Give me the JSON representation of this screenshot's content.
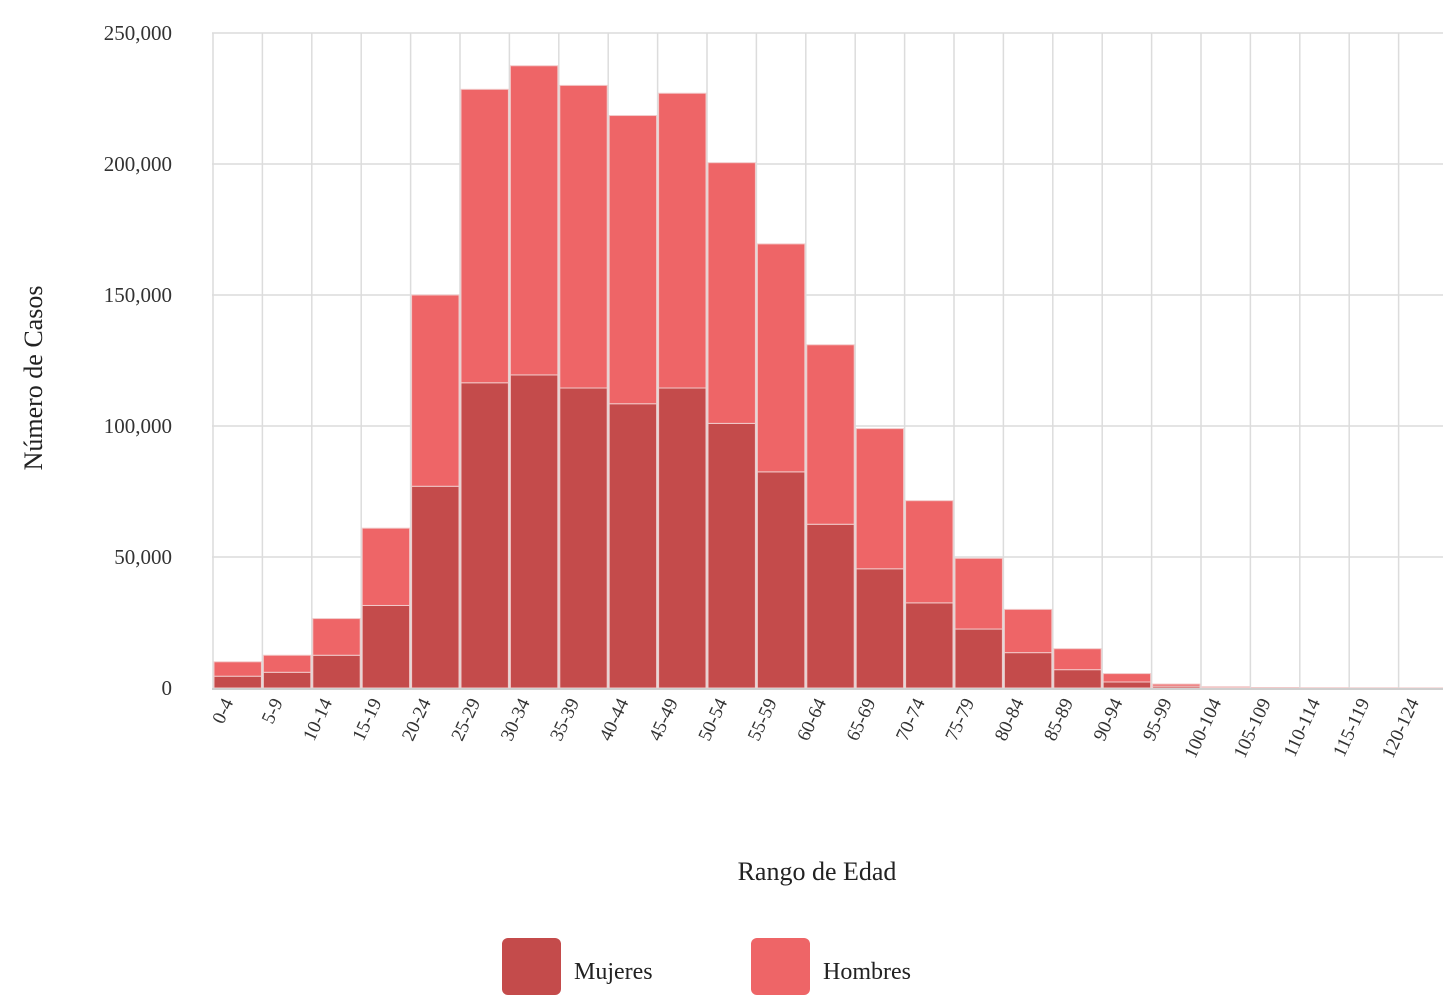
{
  "chart_data": {
    "type": "bar",
    "stacked": true,
    "title": "",
    "xlabel": "Rango de Edad",
    "ylabel": "Número de Casos",
    "ylim": [
      0,
      250000
    ],
    "yticks": [
      0,
      50000,
      100000,
      150000,
      200000,
      250000
    ],
    "ytick_labels": [
      "0",
      "50,000",
      "100,000",
      "150,000",
      "200,000",
      "250,000"
    ],
    "grid": true,
    "legend_position": "bottom-center",
    "categories": [
      "0-4",
      "5-9",
      "10-14",
      "15-19",
      "20-24",
      "25-29",
      "30-34",
      "35-39",
      "40-44",
      "45-49",
      "50-54",
      "55-59",
      "60-64",
      "65-69",
      "70-74",
      "75-79",
      "80-84",
      "85-89",
      "90-94",
      "95-99",
      "100-104",
      "105-109",
      "110-114",
      "115-119",
      "120-124"
    ],
    "series": [
      {
        "name": "Mujeres",
        "color": "#c44b4b",
        "values": [
          4500,
          6000,
          12500,
          31500,
          77000,
          116500,
          119500,
          114500,
          108500,
          114500,
          101000,
          82500,
          62500,
          45500,
          32500,
          22500,
          13500,
          7000,
          2300,
          700,
          200,
          80,
          30,
          20,
          10
        ]
      },
      {
        "name": "Hombres",
        "color": "#ee6567",
        "values": [
          5500,
          6500,
          14000,
          29500,
          73000,
          112000,
          118000,
          115500,
          110000,
          112500,
          99500,
          87000,
          68500,
          53500,
          39000,
          27000,
          16500,
          8000,
          3200,
          800,
          300,
          100,
          40,
          20,
          10
        ]
      }
    ]
  }
}
